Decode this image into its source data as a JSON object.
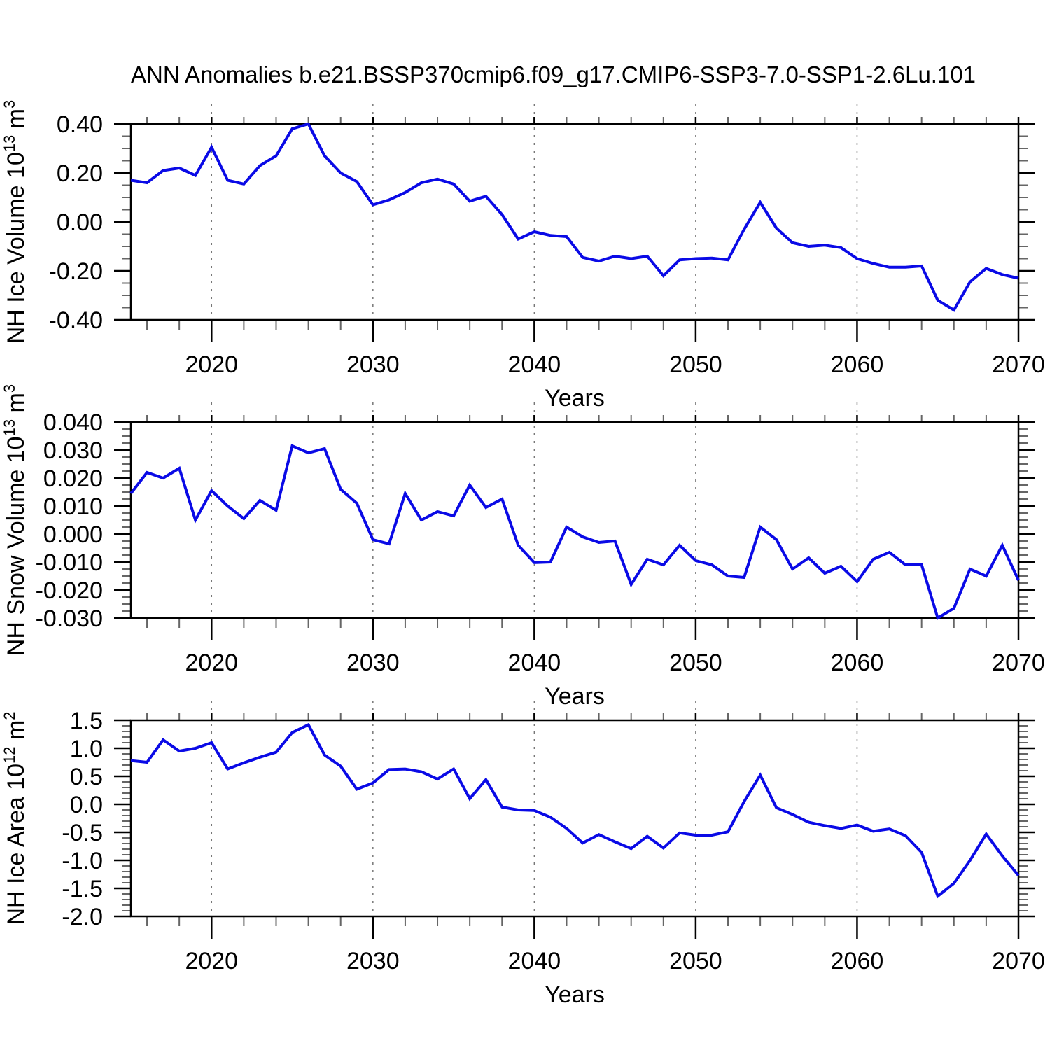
{
  "title": "ANN Anomalies b.e21.BSSP370cmip6.f09_g17.CMIP6-SSP3-7.0-SSP1-2.6Lu.101",
  "figure": {
    "background": "#ffffff",
    "line_color": "#0a0ae6",
    "frame_color": "#000000",
    "grid_color": "#777777",
    "minor_tick_color": "#666666"
  },
  "years": [
    2015,
    2016,
    2017,
    2018,
    2019,
    2020,
    2021,
    2022,
    2023,
    2024,
    2025,
    2026,
    2027,
    2028,
    2029,
    2030,
    2031,
    2032,
    2033,
    2034,
    2035,
    2036,
    2037,
    2038,
    2039,
    2040,
    2041,
    2042,
    2043,
    2044,
    2045,
    2046,
    2047,
    2048,
    2049,
    2050,
    2051,
    2052,
    2053,
    2054,
    2055,
    2056,
    2057,
    2058,
    2059,
    2060,
    2061,
    2062,
    2063,
    2064,
    2065,
    2066,
    2067,
    2068,
    2069,
    2070
  ],
  "x_axis": {
    "label": "Years",
    "xlim": [
      2015,
      2070
    ],
    "major_ticks": [
      2020,
      2030,
      2040,
      2050,
      2060,
      2070
    ],
    "major_tick_labels": [
      "2020",
      "2030",
      "2040",
      "2050",
      "2060",
      "2070"
    ],
    "minor_tick_step": 2,
    "dashed_gridlines": [
      2020,
      2030,
      2040,
      2050,
      2060
    ]
  },
  "chart_data": [
    {
      "type": "line",
      "name": "nh-ice-volume",
      "ylabel": "NH Ice Volume 10^13 m^3",
      "ylabel_parts": [
        [
          "NH Ice Volume 10",
          false
        ],
        [
          "13",
          true
        ],
        [
          " m",
          false
        ],
        [
          "3",
          true
        ]
      ],
      "xlabel": "Years",
      "ylim": [
        -0.4,
        0.4
      ],
      "ytick_values": [
        0.4,
        0.2,
        0.0,
        -0.2,
        -0.4
      ],
      "ytick_labels": [
        "0.40",
        "0.20",
        "0.00",
        "-0.20",
        "-0.40"
      ],
      "y_minor_step": 0.05,
      "grid": "x-dashed",
      "legend": "none",
      "values": [
        0.17,
        0.16,
        0.21,
        0.22,
        0.19,
        0.305,
        0.17,
        0.155,
        0.23,
        0.27,
        0.38,
        0.4,
        0.27,
        0.2,
        0.165,
        0.07,
        0.09,
        0.12,
        0.16,
        0.175,
        0.155,
        0.085,
        0.105,
        0.03,
        -0.07,
        -0.04,
        -0.055,
        -0.06,
        -0.145,
        -0.16,
        -0.14,
        -0.15,
        -0.14,
        -0.22,
        -0.155,
        -0.15,
        -0.148,
        -0.155,
        -0.03,
        0.08,
        -0.025,
        -0.085,
        -0.1,
        -0.095,
        -0.105,
        -0.15,
        -0.17,
        -0.185,
        -0.185,
        -0.18,
        -0.32,
        -0.36,
        -0.245,
        -0.19,
        -0.215,
        -0.23
      ]
    },
    {
      "type": "line",
      "name": "nh-snow-volume",
      "ylabel": "NH Snow Volume 10^13 m^3",
      "ylabel_parts": [
        [
          "NH Snow Volume 10",
          false
        ],
        [
          "13",
          true
        ],
        [
          " m",
          false
        ],
        [
          "3",
          true
        ]
      ],
      "xlabel": "Years",
      "ylim": [
        -0.03,
        0.04
      ],
      "ytick_values": [
        0.04,
        0.03,
        0.02,
        0.01,
        0.0,
        -0.01,
        -0.02,
        -0.03
      ],
      "ytick_labels": [
        "0.040",
        "0.030",
        "0.020",
        "0.010",
        "0.000",
        "-0.010",
        "-0.020",
        "-0.030"
      ],
      "y_minor_step": 0.0025,
      "grid": "x-dashed",
      "legend": "none",
      "values": [
        0.0145,
        0.022,
        0.02,
        0.0235,
        0.005,
        0.0155,
        0.01,
        0.0055,
        0.012,
        0.0085,
        0.0315,
        0.029,
        0.0305,
        0.016,
        0.011,
        -0.002,
        -0.0035,
        0.0145,
        0.005,
        0.008,
        0.0065,
        0.0175,
        0.0095,
        0.0125,
        -0.004,
        -0.0102,
        -0.01,
        0.0025,
        -0.001,
        -0.003,
        -0.0025,
        -0.018,
        -0.009,
        -0.011,
        -0.004,
        -0.0095,
        -0.011,
        -0.015,
        -0.0155,
        0.0025,
        -0.002,
        -0.0125,
        -0.0085,
        -0.014,
        -0.0115,
        -0.017,
        -0.009,
        -0.0065,
        -0.011,
        -0.011,
        -0.03,
        -0.0265,
        -0.0125,
        -0.015,
        -0.004,
        -0.0165
      ]
    },
    {
      "type": "line",
      "name": "nh-ice-area",
      "ylabel": "NH Ice Area 10^12 m^2",
      "ylabel_parts": [
        [
          "NH Ice Area 10",
          false
        ],
        [
          "12",
          true
        ],
        [
          " m",
          false
        ],
        [
          "2",
          true
        ]
      ],
      "xlabel": "Years",
      "ylim": [
        -2.0,
        1.5
      ],
      "ytick_values": [
        1.5,
        1.0,
        0.5,
        0.0,
        -0.5,
        -1.0,
        -1.5,
        -2.0
      ],
      "ytick_labels": [
        "1.5",
        "1.0",
        "0.5",
        "0.0",
        "-0.5",
        "-1.0",
        "-1.5",
        "-2.0"
      ],
      "y_minor_step": 0.1,
      "grid": "x-dashed",
      "legend": "none",
      "values": [
        0.78,
        0.75,
        1.15,
        0.95,
        1.0,
        1.1,
        0.63,
        0.74,
        0.84,
        0.93,
        1.28,
        1.42,
        0.88,
        0.68,
        0.27,
        0.38,
        0.62,
        0.63,
        0.58,
        0.45,
        0.63,
        0.1,
        0.44,
        -0.05,
        -0.1,
        -0.11,
        -0.23,
        -0.43,
        -0.69,
        -0.54,
        -0.67,
        -0.79,
        -0.57,
        -0.78,
        -0.51,
        -0.55,
        -0.55,
        -0.49,
        0.05,
        0.52,
        -0.06,
        -0.18,
        -0.32,
        -0.38,
        -0.43,
        -0.37,
        -0.48,
        -0.44,
        -0.56,
        -0.86,
        -1.64,
        -1.41,
        -1.0,
        -0.53,
        -0.92,
        -1.27
      ]
    }
  ]
}
